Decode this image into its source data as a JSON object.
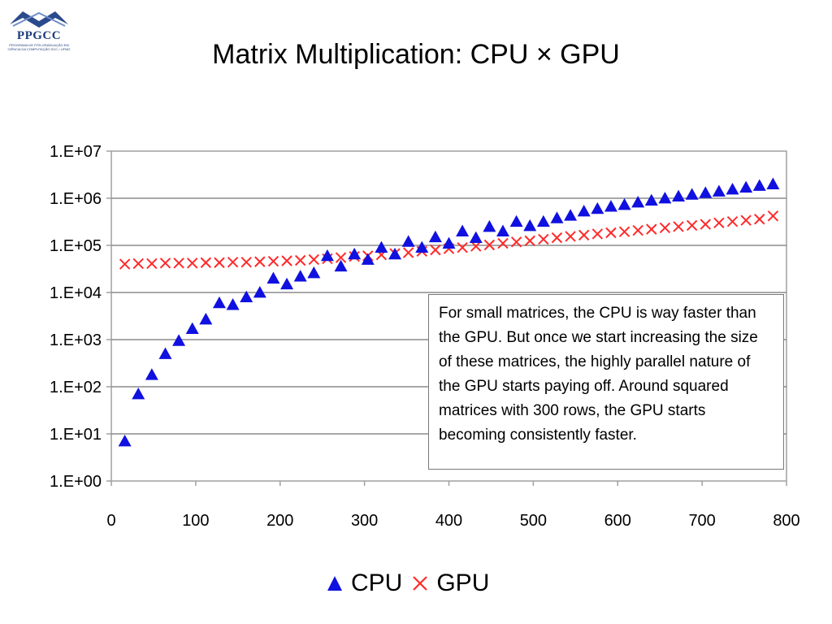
{
  "logo": {
    "name": "PPGCC",
    "subtitle": "PROGRAMA DE PÓS-GRADUAÇÃO EM CIÊNCIA DA COMPUTAÇÃO DCC • UFMG"
  },
  "title": "Matrix Multiplication: CPU × GPU",
  "annotation": "For small matrices, the CPU is way faster than the GPU. But once we start increasing the size of these matrices, the highly parallel nature of the GPU starts paying off. Around squared matrices with 300 rows, the GPU starts becoming consistently faster.",
  "colors": {
    "cpu": "#1010e0",
    "gpu": "#ff2a2a",
    "grid": "#8c8c8c",
    "axis": "#a0a0a0"
  },
  "chart_data": {
    "type": "scatter",
    "title": "Matrix Multiplication: CPU × GPU",
    "xlabel": "",
    "ylabel": "",
    "xlim": [
      0,
      800
    ],
    "ylim": [
      1,
      10000000
    ],
    "yscale": "log",
    "grid": true,
    "legend": "bottom",
    "x_ticks": [
      "0",
      "100",
      "200",
      "300",
      "400",
      "500",
      "600",
      "700",
      "800"
    ],
    "y_ticks": [
      "1.E+00",
      "1.E+01",
      "1.E+02",
      "1.E+03",
      "1.E+04",
      "1.E+05",
      "1.E+06",
      "1.E+07"
    ],
    "series": [
      {
        "name": "CPU",
        "marker": "triangle",
        "x": [
          16,
          32,
          48,
          64,
          80,
          96,
          112,
          128,
          144,
          160,
          176,
          192,
          208,
          224,
          240,
          256,
          272,
          288,
          304,
          320,
          336,
          352,
          368,
          384,
          400,
          416,
          432,
          448,
          464,
          480,
          496,
          512,
          528,
          544,
          560,
          576,
          592,
          608,
          624,
          640,
          656,
          672,
          688,
          704,
          720,
          736,
          752,
          768,
          784
        ],
        "y": [
          7,
          70,
          180,
          500,
          950,
          1700,
          2700,
          6000,
          5500,
          8000,
          10000,
          20000,
          15000,
          22000,
          26000,
          60000,
          36000,
          65000,
          50000,
          90000,
          65000,
          120000,
          90000,
          150000,
          110000,
          200000,
          145000,
          250000,
          200000,
          320000,
          260000,
          320000,
          380000,
          430000,
          530000,
          600000,
          670000,
          730000,
          820000,
          900000,
          1000000,
          1100000,
          1200000,
          1300000,
          1400000,
          1550000,
          1700000,
          1850000,
          2000000
        ]
      },
      {
        "name": "GPU",
        "marker": "x",
        "x": [
          16,
          32,
          48,
          64,
          80,
          96,
          112,
          128,
          144,
          160,
          176,
          192,
          208,
          224,
          240,
          256,
          272,
          288,
          304,
          320,
          336,
          352,
          368,
          384,
          400,
          416,
          432,
          448,
          464,
          480,
          496,
          512,
          528,
          544,
          560,
          576,
          592,
          608,
          624,
          640,
          656,
          672,
          688,
          704,
          720,
          736,
          752,
          768,
          784
        ],
        "y": [
          40000,
          41000,
          41000,
          42000,
          42000,
          42000,
          43000,
          43000,
          44000,
          44000,
          45000,
          46000,
          47000,
          48000,
          50000,
          52000,
          55000,
          58000,
          60000,
          63000,
          67000,
          70000,
          75000,
          80000,
          85000,
          90000,
          96000,
          102000,
          110000,
          118000,
          125000,
          135000,
          145000,
          155000,
          165000,
          175000,
          185000,
          195000,
          208000,
          220000,
          235000,
          250000,
          265000,
          280000,
          300000,
          320000,
          340000,
          360000,
          420000
        ]
      }
    ]
  }
}
